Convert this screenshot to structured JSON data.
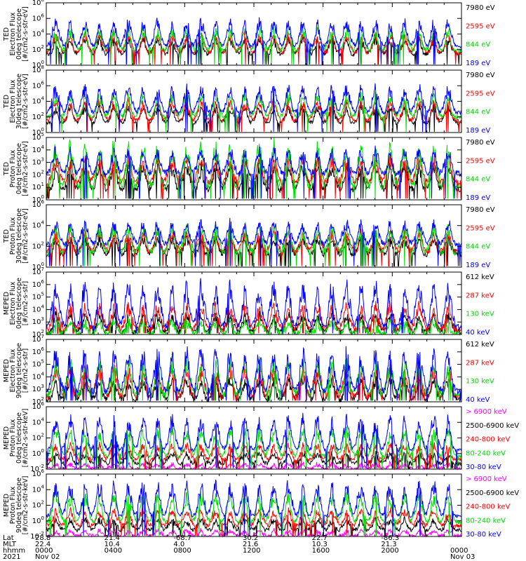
{
  "chart_data": [
    {
      "type": "line",
      "panel_title": "TED",
      "ylabel_lines": [
        "TED",
        "Electron Flux",
        "0deg telescope",
        "[#/cm2-s-str-eV]"
      ],
      "ylog": true,
      "ylim_exp": [
        0,
        8
      ],
      "ytick_exps": [
        0,
        2,
        4,
        6,
        8
      ],
      "series": [
        {
          "name": "7980 eV",
          "color": "#000000",
          "base": 1.4,
          "peak": 3.6
        },
        {
          "name": "2595 eV",
          "color": "#ff0000",
          "base": 1.6,
          "peak": 4.2
        },
        {
          "name": "844 eV",
          "color": "#00dd00",
          "base": 1.9,
          "peak": 5.0
        },
        {
          "name": "189 eV",
          "color": "#0000ff",
          "base": 2.4,
          "peak": 6.0
        }
      ]
    },
    {
      "type": "line",
      "panel_title": "TED",
      "ylabel_lines": [
        "TED",
        "Electron Flux",
        "30deg telescope",
        "[#/cm2-s-str-eV]"
      ],
      "ylog": true,
      "ylim_exp": [
        0,
        8
      ],
      "ytick_exps": [
        0,
        2,
        4,
        6,
        8
      ],
      "series": [
        {
          "name": "7980 eV",
          "color": "#000000",
          "base": 1.2,
          "peak": 3.6
        },
        {
          "name": "2595 eV",
          "color": "#ff0000",
          "base": 1.5,
          "peak": 4.3
        },
        {
          "name": "844 eV",
          "color": "#00dd00",
          "base": 2.0,
          "peak": 5.2
        },
        {
          "name": "189 eV",
          "color": "#0000ff",
          "base": 2.5,
          "peak": 6.2
        }
      ]
    },
    {
      "type": "line",
      "panel_title": "TED",
      "ylabel_lines": [
        "TED",
        "Proton Flux",
        "0deg telescope",
        "[#/cm2-s-str-eV]"
      ],
      "ylog": true,
      "ylim_exp": [
        0,
        5
      ],
      "ytick_exps": [
        0,
        1,
        2,
        3,
        4,
        5
      ],
      "series": [
        {
          "name": "7980 eV",
          "color": "#000000",
          "base": 0.8,
          "peak": 3.0
        },
        {
          "name": "2595 eV",
          "color": "#ff0000",
          "base": 1.4,
          "peak": 3.6
        },
        {
          "name": "844 eV",
          "color": "#00dd00",
          "base": 1.0,
          "peak": 4.8
        },
        {
          "name": "189 eV",
          "color": "#0000ff",
          "base": 2.1,
          "peak": 4.2
        }
      ]
    },
    {
      "type": "line",
      "panel_title": "TED",
      "ylabel_lines": [
        "TED",
        "Proton Flux",
        "30deg telescope",
        "[#/cm2-s-str-eV]"
      ],
      "ylog": true,
      "ylim_exp": [
        0,
        6
      ],
      "ytick_exps": [
        0,
        2,
        4,
        6
      ],
      "series": [
        {
          "name": "7980 eV",
          "color": "#000000",
          "base": 1.2,
          "peak": 3.0
        },
        {
          "name": "2595 eV",
          "color": "#ff0000",
          "base": 1.5,
          "peak": 3.6
        },
        {
          "name": "844 eV",
          "color": "#00dd00",
          "base": 1.4,
          "peak": 4.2
        },
        {
          "name": "189 eV",
          "color": "#0000ff",
          "base": 2.2,
          "peak": 4.6
        }
      ]
    },
    {
      "type": "line",
      "panel_title": "MEPED",
      "ylabel_lines": [
        "MEPED",
        "Electron Flux",
        "0deg telescope",
        "[#/cm2-s-str]"
      ],
      "ylog": true,
      "ylim_exp": [
        2,
        7
      ],
      "ytick_exps": [
        2,
        3,
        4,
        5,
        6,
        7
      ],
      "series": [
        {
          "name": "612 keV",
          "color": "#000000",
          "base": 2.2,
          "peak": 3.8
        },
        {
          "name": "287 keV",
          "color": "#ff0000",
          "base": 2.4,
          "peak": 4.6
        },
        {
          "name": "130 keV",
          "color": "#00dd00",
          "base": 2.0,
          "peak": 3.2
        },
        {
          "name": "40 keV",
          "color": "#0000ff",
          "base": 2.6,
          "peak": 6.4
        }
      ]
    },
    {
      "type": "line",
      "panel_title": "MEPED",
      "ylabel_lines": [
        "MEPED",
        "Electron Flux",
        "90deg telescope",
        "[#/cm2-s-str]"
      ],
      "ylog": true,
      "ylim_exp": [
        2,
        7
      ],
      "ytick_exps": [
        2,
        3,
        4,
        5,
        6,
        7
      ],
      "series": [
        {
          "name": "612 keV",
          "color": "#000000",
          "base": 2.2,
          "peak": 4.0
        },
        {
          "name": "287 keV",
          "color": "#ff0000",
          "base": 2.4,
          "peak": 5.0
        },
        {
          "name": "130 keV",
          "color": "#00dd00",
          "base": 2.6,
          "peak": 5.5
        },
        {
          "name": "40 keV",
          "color": "#0000ff",
          "base": 2.8,
          "peak": 6.4
        }
      ]
    },
    {
      "type": "line",
      "panel_title": "MEPED",
      "ylabel_lines": [
        "MEPED",
        "Proton Flux",
        "0deg telescope",
        "[#/cm2-s-str-keV]"
      ],
      "ylog": true,
      "ylim_exp": [
        -2,
        6
      ],
      "ytick_exps": [
        -2,
        0,
        2,
        4,
        6
      ],
      "series": [
        {
          "name": "> 6900 keV",
          "color": "#ff00ff",
          "base": -2.0,
          "peak": -1.2
        },
        {
          "name": "2500-6900 keV",
          "color": "#000000",
          "base": -1.3,
          "peak": 0.2
        },
        {
          "name": "240-800 keV",
          "color": "#ff0000",
          "base": -0.8,
          "peak": 1.4
        },
        {
          "name": "80-240 keV",
          "color": "#00dd00",
          "base": -0.4,
          "peak": 3.6
        },
        {
          "name": "30-80 keV",
          "color": "#0000ff",
          "base": 0.4,
          "peak": 5.0
        }
      ]
    },
    {
      "type": "line",
      "panel_title": "MEPED",
      "ylabel_lines": [
        "MEPED",
        "Proton Flux",
        "90deg telescope",
        "[#/cm2-s-str-keV]"
      ],
      "ylog": true,
      "ylim_exp": [
        -2,
        6
      ],
      "ytick_exps": [
        -2,
        0,
        2,
        4,
        6
      ],
      "series": [
        {
          "name": "> 6900 keV",
          "color": "#ff00ff",
          "base": -2.0,
          "peak": -1.1
        },
        {
          "name": "2500-6900 keV",
          "color": "#000000",
          "base": -1.2,
          "peak": 0.4
        },
        {
          "name": "240-800 keV",
          "color": "#ff0000",
          "base": -0.6,
          "peak": 1.6
        },
        {
          "name": "80-240 keV",
          "color": "#00dd00",
          "base": -0.2,
          "peak": 3.8
        },
        {
          "name": "30-80 keV",
          "color": "#0000ff",
          "base": 0.6,
          "peak": 5.2
        }
      ]
    }
  ],
  "x_axis": {
    "start_hhmm": "0000",
    "end_hhmm": "0000",
    "hours_span": 24,
    "major_ticks_hours": [
      0,
      4,
      8,
      12,
      16,
      20,
      24
    ],
    "footer_rows": [
      {
        "label": "Lat",
        "values": [
          "28.8",
          "21.4",
          "-68.7",
          "30.2",
          "22.7",
          "-86.3",
          ""
        ]
      },
      {
        "label": "MLT",
        "values": [
          "22.4",
          "10.4",
          "4.0",
          "21.6",
          "10.3",
          "21.3",
          ""
        ]
      },
      {
        "label": "hhmm",
        "values": [
          "0000",
          "0400",
          "0800",
          "1200",
          "1600",
          "2000",
          "0000"
        ]
      },
      {
        "label": "2021",
        "values": [
          "Nov 02",
          "",
          "",
          "",
          "",
          "",
          "Nov 03"
        ]
      }
    ]
  }
}
